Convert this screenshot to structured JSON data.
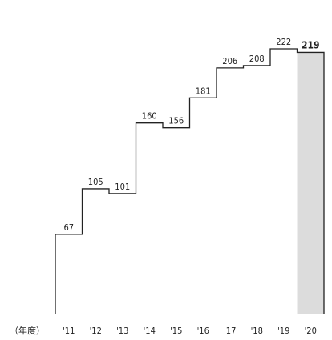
{
  "chart_data": {
    "type": "line",
    "step": true,
    "x_unit_label": "（年度）",
    "categories": [
      "'11",
      "'12",
      "'13",
      "'14",
      "'15",
      "'16",
      "'17",
      "'18",
      "'19",
      "'20"
    ],
    "values": [
      67,
      105,
      101,
      160,
      156,
      181,
      206,
      208,
      222,
      219
    ],
    "labels": [
      "67",
      "105",
      "101",
      "160",
      "156",
      "181",
      "206",
      "208",
      "222",
      "219"
    ],
    "highlight_category": "'20",
    "highlight_color": "#dcdcdc",
    "line_color": "#222222",
    "ylim": [
      0,
      230
    ],
    "grid": false,
    "legend": "none"
  }
}
